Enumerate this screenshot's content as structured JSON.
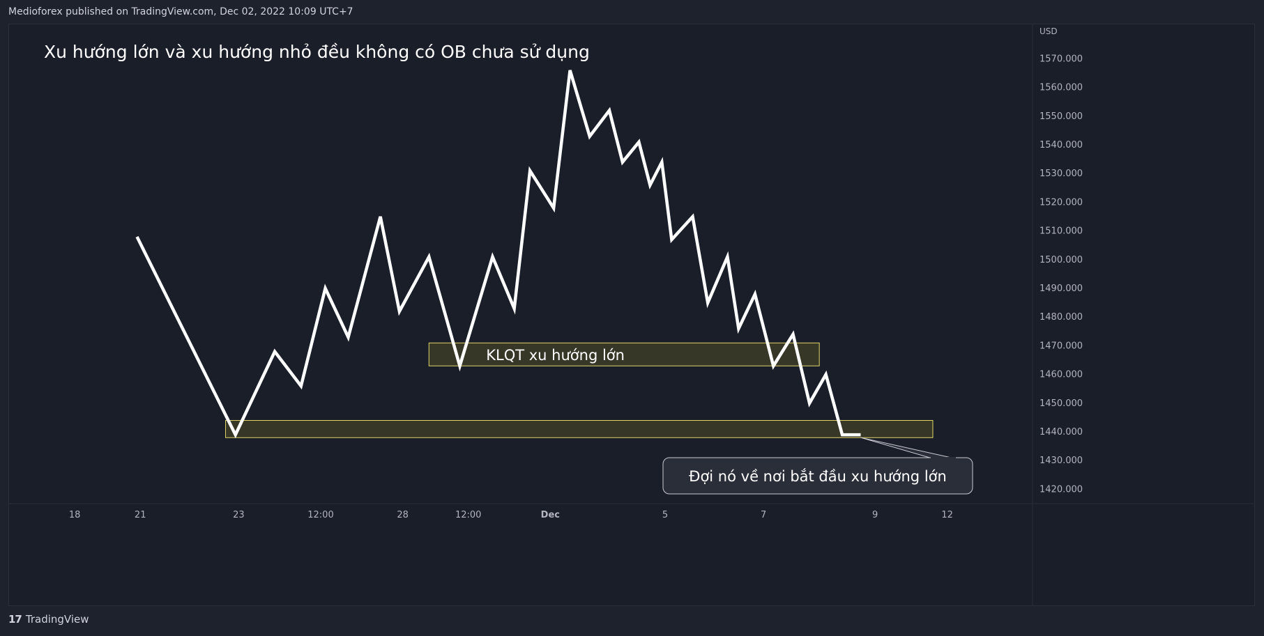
{
  "header": {
    "published": "Medioforex published on TradingView.com, Dec 02, 2022 10:09 UTC+7"
  },
  "footer": {
    "brand": "TradingView",
    "logo": "17"
  },
  "chart_data": {
    "type": "line",
    "title": "Xu hướng lớn và xu hướng nhỏ đều không có OB chưa sử dụng",
    "ylabel": "USD",
    "ylim": [
      1415,
      1582
    ],
    "y_ticks": [
      "1420.000",
      "1430.000",
      "1440.000",
      "1450.000",
      "1460.000",
      "1470.000",
      "1480.000",
      "1490.000",
      "1500.000",
      "1510.000",
      "1520.000",
      "1530.000",
      "1540.000",
      "1550.000",
      "1560.000",
      "1570.000"
    ],
    "x_ticks": [
      {
        "label": "18",
        "x": 1.0,
        "bold": false
      },
      {
        "label": "21",
        "x": 2.0,
        "bold": false
      },
      {
        "label": "23",
        "x": 3.5,
        "bold": false
      },
      {
        "label": "12:00",
        "x": 4.75,
        "bold": false
      },
      {
        "label": "28",
        "x": 6.0,
        "bold": false
      },
      {
        "label": "12:00",
        "x": 7.0,
        "bold": false
      },
      {
        "label": "Dec",
        "x": 8.25,
        "bold": true
      },
      {
        "label": "5",
        "x": 10.0,
        "bold": false
      },
      {
        "label": "7",
        "x": 11.5,
        "bold": false
      },
      {
        "label": "9",
        "x": 13.2,
        "bold": false
      },
      {
        "label": "12",
        "x": 14.3,
        "bold": false
      }
    ],
    "xlim": [
      0.0,
      15.6
    ],
    "series": [
      {
        "color": "#ffffff",
        "x": [
          1.95,
          3.45,
          4.05,
          4.45,
          4.82,
          5.17,
          5.66,
          5.95,
          6.4,
          6.87,
          7.37,
          7.7,
          7.94,
          8.3,
          8.55,
          8.85,
          9.15,
          9.35,
          9.6,
          9.77,
          9.95,
          10.1,
          10.42,
          10.65,
          10.95,
          11.12,
          11.37,
          11.65,
          11.95,
          12.2,
          12.45,
          12.7,
          12.98
        ],
        "y": [
          1508,
          1439,
          1468,
          1456,
          1490,
          1473,
          1515,
          1482,
          1501,
          1463,
          1501,
          1483,
          1531,
          1518,
          1566,
          1543,
          1552,
          1534,
          1541,
          1526,
          1534,
          1507,
          1515,
          1485,
          1501,
          1476,
          1488,
          1463,
          1474,
          1450,
          1460,
          1439,
          1439
        ]
      }
    ],
    "zones": [
      {
        "x_start": 6.4,
        "x_end": 12.35,
        "y_low": 1463,
        "y_high": 1471,
        "label": "KLQT xu hướng lớn"
      },
      {
        "x_start": 3.3,
        "x_end": 14.08,
        "y_low": 1438,
        "y_high": 1444,
        "label": ""
      }
    ],
    "callout": {
      "text": "Đợi nó về nơi bắt đầu xu hướng lớn",
      "target_x": 12.98,
      "target_y": 1439
    },
    "grid": false,
    "colors": {
      "background": "#1a1e29",
      "line": "#ffffff",
      "zone_fill": "#3b3a27",
      "zone_border": "#e0d66a",
      "axis_text": "#b2b5be"
    }
  }
}
